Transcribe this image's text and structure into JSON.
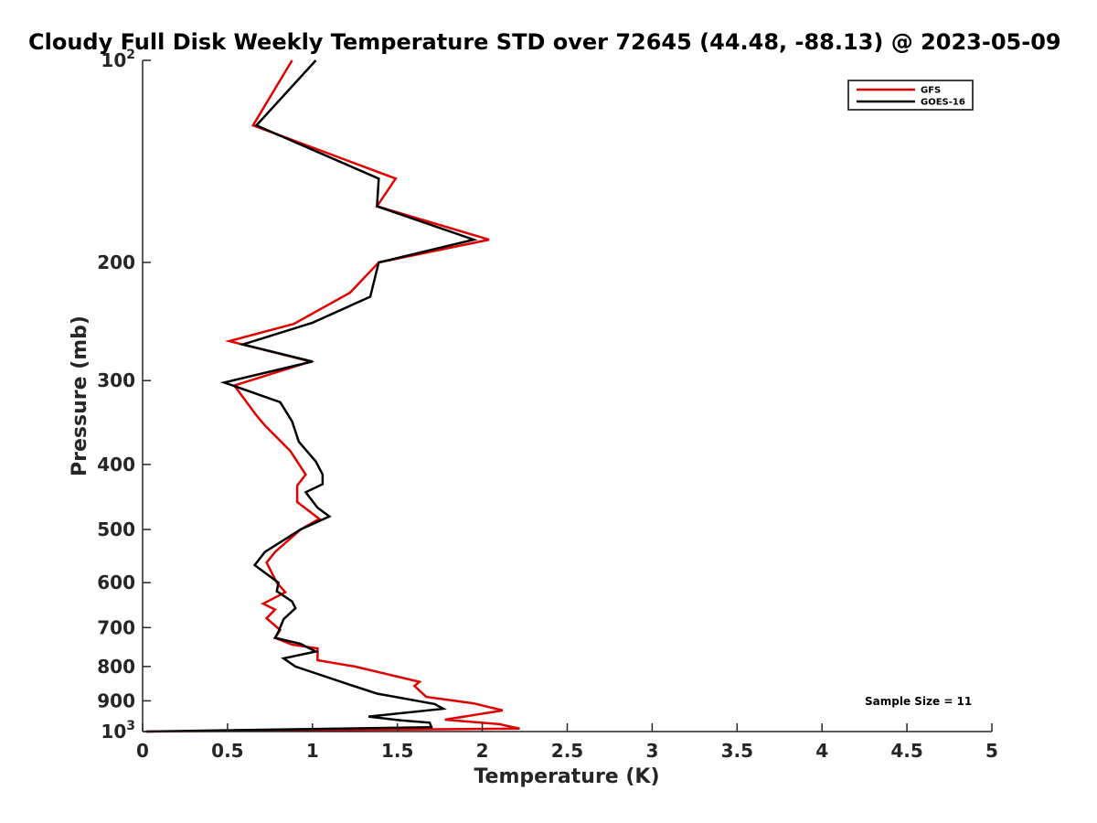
{
  "chart_data": {
    "type": "line",
    "title": "Cloudy Full Disk Weekly Temperature STD over 72645 (44.48, -88.13) @ 2023-05-09",
    "xlabel": "Temperature (K)",
    "ylabel": "Pressure (mb)",
    "xlim": [
      0,
      5
    ],
    "ylim": [
      100,
      1000
    ],
    "y_scale": "log",
    "y_reversed": true,
    "grid": false,
    "legend_position": "top-right",
    "x_ticks": [
      {
        "value": 0,
        "label": "0"
      },
      {
        "value": 0.5,
        "label": "0.5"
      },
      {
        "value": 1,
        "label": "1"
      },
      {
        "value": 1.5,
        "label": "1.5"
      },
      {
        "value": 2,
        "label": "2"
      },
      {
        "value": 2.5,
        "label": "2.5"
      },
      {
        "value": 3,
        "label": "3"
      },
      {
        "value": 3.5,
        "label": "3.5"
      },
      {
        "value": 4,
        "label": "4"
      },
      {
        "value": 4.5,
        "label": "4.5"
      },
      {
        "value": 5,
        "label": "5"
      }
    ],
    "y_ticks": [
      {
        "value": 100,
        "base": "10",
        "exp": "2"
      },
      {
        "value": 200,
        "label": "200"
      },
      {
        "value": 300,
        "label": "300"
      },
      {
        "value": 400,
        "label": "400"
      },
      {
        "value": 500,
        "label": "500"
      },
      {
        "value": 600,
        "label": "600"
      },
      {
        "value": 700,
        "label": "700"
      },
      {
        "value": 800,
        "label": "800"
      },
      {
        "value": 900,
        "label": "900"
      },
      {
        "value": 1000,
        "base": "10",
        "exp": "3"
      }
    ],
    "series": [
      {
        "name": "GFS",
        "color": "#e00000",
        "points": [
          [
            0.88,
            100
          ],
          [
            0.65,
            125
          ],
          [
            1.49,
            150
          ],
          [
            1.38,
            165
          ],
          [
            2.04,
            185
          ],
          [
            1.39,
            200
          ],
          [
            1.22,
            222
          ],
          [
            0.89,
            247
          ],
          [
            0.51,
            262
          ],
          [
            0.99,
            281
          ],
          [
            0.54,
            305
          ],
          [
            0.67,
            338
          ],
          [
            0.72,
            350
          ],
          [
            0.87,
            382
          ],
          [
            0.96,
            414
          ],
          [
            0.91,
            430
          ],
          [
            0.91,
            455
          ],
          [
            1.04,
            482
          ],
          [
            0.93,
            500
          ],
          [
            0.78,
            540
          ],
          [
            0.73,
            560
          ],
          [
            0.79,
            600
          ],
          [
            0.84,
            620
          ],
          [
            0.71,
            645
          ],
          [
            0.78,
            658
          ],
          [
            0.73,
            678
          ],
          [
            0.81,
            706
          ],
          [
            0.78,
            725
          ],
          [
            0.88,
            742
          ],
          [
            1.03,
            752
          ],
          [
            1.03,
            783
          ],
          [
            1.25,
            800
          ],
          [
            1.63,
            843
          ],
          [
            1.6,
            855
          ],
          [
            1.67,
            888
          ],
          [
            1.95,
            908
          ],
          [
            2.12,
            930
          ],
          [
            1.78,
            960
          ],
          [
            2.1,
            975
          ],
          [
            2.22,
            990
          ],
          [
            0.02,
            1000
          ]
        ]
      },
      {
        "name": "GOES-16",
        "color": "#000000",
        "points": [
          [
            1.02,
            100
          ],
          [
            0.67,
            125
          ],
          [
            1.39,
            150
          ],
          [
            1.38,
            165
          ],
          [
            1.95,
            185
          ],
          [
            1.39,
            200
          ],
          [
            1.34,
            225
          ],
          [
            1.0,
            246
          ],
          [
            0.59,
            265
          ],
          [
            1.0,
            281
          ],
          [
            0.48,
            302
          ],
          [
            0.81,
            323
          ],
          [
            0.88,
            345
          ],
          [
            0.92,
            370
          ],
          [
            1.02,
            396
          ],
          [
            1.06,
            414
          ],
          [
            1.06,
            428
          ],
          [
            0.96,
            440
          ],
          [
            1.03,
            464
          ],
          [
            1.1,
            478
          ],
          [
            0.93,
            500
          ],
          [
            0.72,
            540
          ],
          [
            0.66,
            565
          ],
          [
            0.8,
            600
          ],
          [
            0.79,
            618
          ],
          [
            0.88,
            640
          ],
          [
            0.9,
            655
          ],
          [
            0.83,
            680
          ],
          [
            0.8,
            710
          ],
          [
            0.78,
            725
          ],
          [
            0.93,
            740
          ],
          [
            1.02,
            760
          ],
          [
            0.83,
            778
          ],
          [
            0.9,
            800
          ],
          [
            1.21,
            850
          ],
          [
            1.38,
            878
          ],
          [
            1.72,
            910
          ],
          [
            1.77,
            925
          ],
          [
            1.33,
            950
          ],
          [
            1.52,
            962
          ],
          [
            1.69,
            970
          ],
          [
            1.7,
            985
          ],
          [
            0.02,
            1000
          ]
        ]
      }
    ],
    "annotation": "Sample Size = 11"
  }
}
